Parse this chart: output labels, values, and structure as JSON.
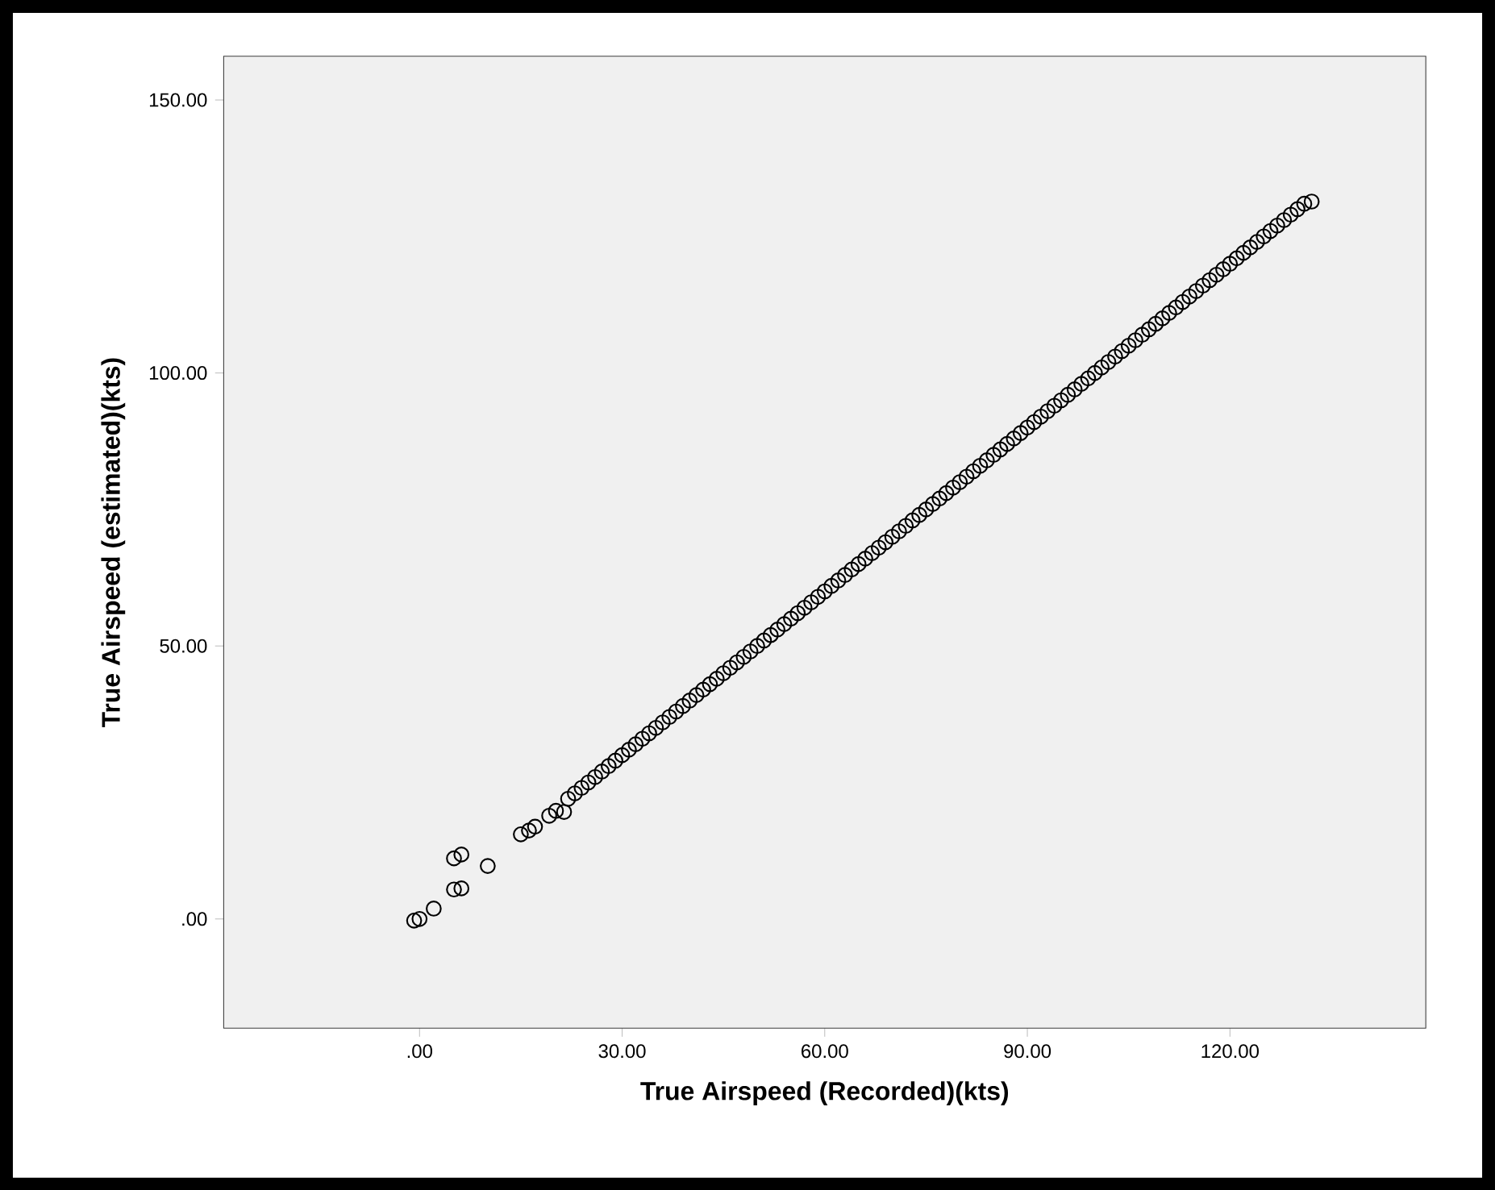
{
  "chart_data": {
    "type": "scatter",
    "xlabel": "True Airspeed (Recorded)(kts)",
    "ylabel": "True Airspeed (estimated)(kts)",
    "xlim": [
      -29,
      149
    ],
    "ylim": [
      -20,
      158
    ],
    "xticks": [
      {
        "value": 0,
        "label": ".00"
      },
      {
        "value": 30,
        "label": "30.00"
      },
      {
        "value": 60,
        "label": "60.00"
      },
      {
        "value": 90,
        "label": "90.00"
      },
      {
        "value": 120,
        "label": "120.00"
      }
    ],
    "yticks": [
      {
        "value": 0,
        "label": ".00"
      },
      {
        "value": 50,
        "label": "50.00"
      },
      {
        "value": 100,
        "label": "100.00"
      },
      {
        "value": 150,
        "label": "150.00"
      }
    ],
    "marker": "circle",
    "series": [
      {
        "color": "#000000",
        "x": [
          -0.8,
          0,
          2.1,
          5.1,
          6.2,
          5.1,
          6.2,
          10.1,
          15.0,
          16.2,
          17.1,
          19.2,
          20.2,
          21.4,
          22,
          23,
          24,
          25,
          26,
          27,
          28,
          29,
          30,
          31,
          32,
          33,
          34,
          35,
          36,
          37,
          38,
          39,
          40,
          41,
          42,
          43,
          44,
          45,
          46,
          47,
          48,
          49,
          50,
          51,
          52,
          53,
          54,
          55,
          56,
          57,
          58,
          59,
          60,
          61,
          62,
          63,
          64,
          65,
          66,
          67,
          68,
          69,
          70,
          71,
          72,
          73,
          74,
          75,
          76,
          77,
          78,
          79,
          80,
          81,
          82,
          83,
          84,
          85,
          86,
          87,
          88,
          89,
          90,
          91,
          92,
          93,
          94,
          95,
          96,
          97,
          98,
          99,
          100,
          101,
          102,
          103,
          104,
          105,
          106,
          107,
          108,
          109,
          110,
          111,
          112,
          113,
          114,
          115,
          116,
          117,
          118,
          119,
          120,
          121,
          122,
          123,
          124,
          125,
          126,
          127,
          128,
          129,
          130,
          131,
          132.1
        ],
        "values": [
          -0.3,
          0,
          1.9,
          11.1,
          11.8,
          5.4,
          5.6,
          9.7,
          15.5,
          16.2,
          16.9,
          18.9,
          19.8,
          19.6,
          22,
          23,
          24,
          25,
          26,
          27,
          28,
          29,
          30,
          31,
          32,
          33,
          34,
          35,
          36,
          37,
          38,
          39,
          40,
          41,
          42,
          43,
          44,
          45,
          46,
          47,
          48,
          49,
          50,
          51,
          52,
          53,
          54,
          55,
          56,
          57,
          58,
          59,
          60,
          61,
          62,
          63,
          64,
          65,
          66,
          67,
          68,
          69,
          70,
          71,
          72,
          73,
          74,
          75,
          76,
          77,
          78,
          79,
          80,
          81,
          82,
          83,
          84,
          85,
          86,
          87,
          88,
          89,
          90,
          91,
          92,
          93,
          94,
          95,
          96,
          97,
          98,
          99,
          100,
          101,
          102,
          103,
          104,
          105,
          106,
          107,
          108,
          109,
          110,
          111,
          112,
          113,
          114,
          115,
          116,
          117,
          118,
          119,
          120,
          121,
          122,
          123,
          124,
          125,
          126,
          127,
          128,
          129,
          130,
          131,
          131.4
        ]
      }
    ]
  }
}
